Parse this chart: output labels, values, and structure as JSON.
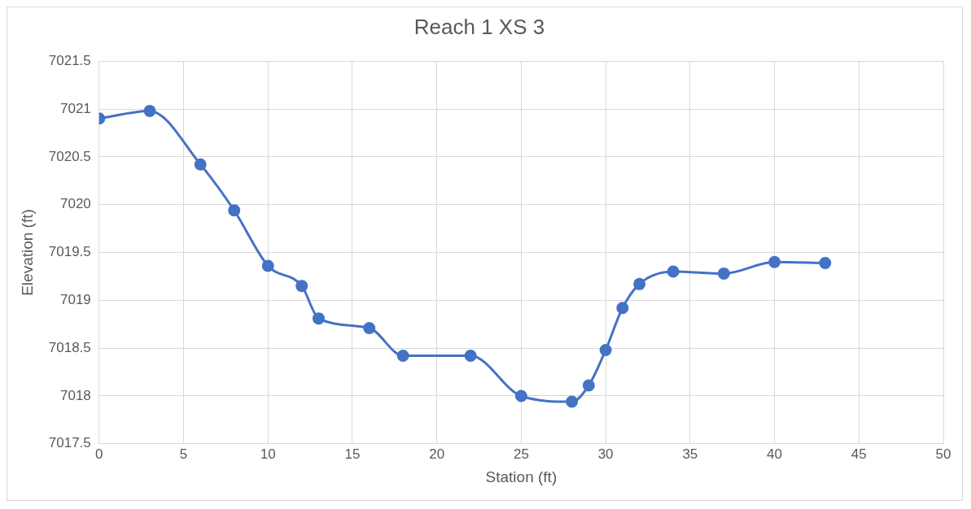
{
  "chart_data": {
    "type": "line",
    "title": "Reach 1 XS 3",
    "xlabel": "Station (ft)",
    "ylabel": "Elevation (ft)",
    "x": [
      0,
      3,
      6,
      8,
      10,
      12,
      13,
      16,
      18,
      22,
      25,
      28,
      29,
      30,
      31,
      32,
      34,
      37,
      40,
      43
    ],
    "series": [
      {
        "color": "#4472c4",
        "values": [
          7020.9,
          7020.98,
          7020.42,
          7019.94,
          7019.36,
          7019.15,
          7018.81,
          7018.71,
          7018.42,
          7018.42,
          7018.0,
          7017.94,
          7018.11,
          7018.48,
          7018.92,
          7019.17,
          7019.3,
          7019.28,
          7019.4,
          7019.39
        ]
      }
    ],
    "xlim": [
      0,
      50
    ],
    "xticks": [
      0,
      5,
      10,
      15,
      20,
      25,
      30,
      35,
      40,
      45,
      50
    ],
    "ylim": [
      7017.5,
      7021.5
    ],
    "yticks": [
      7017.5,
      7018,
      7018.5,
      7019,
      7019.5,
      7020,
      7020.5,
      7021,
      7021.5
    ],
    "grid": true,
    "legend": false,
    "marker": "circle",
    "line_style": "solid"
  }
}
